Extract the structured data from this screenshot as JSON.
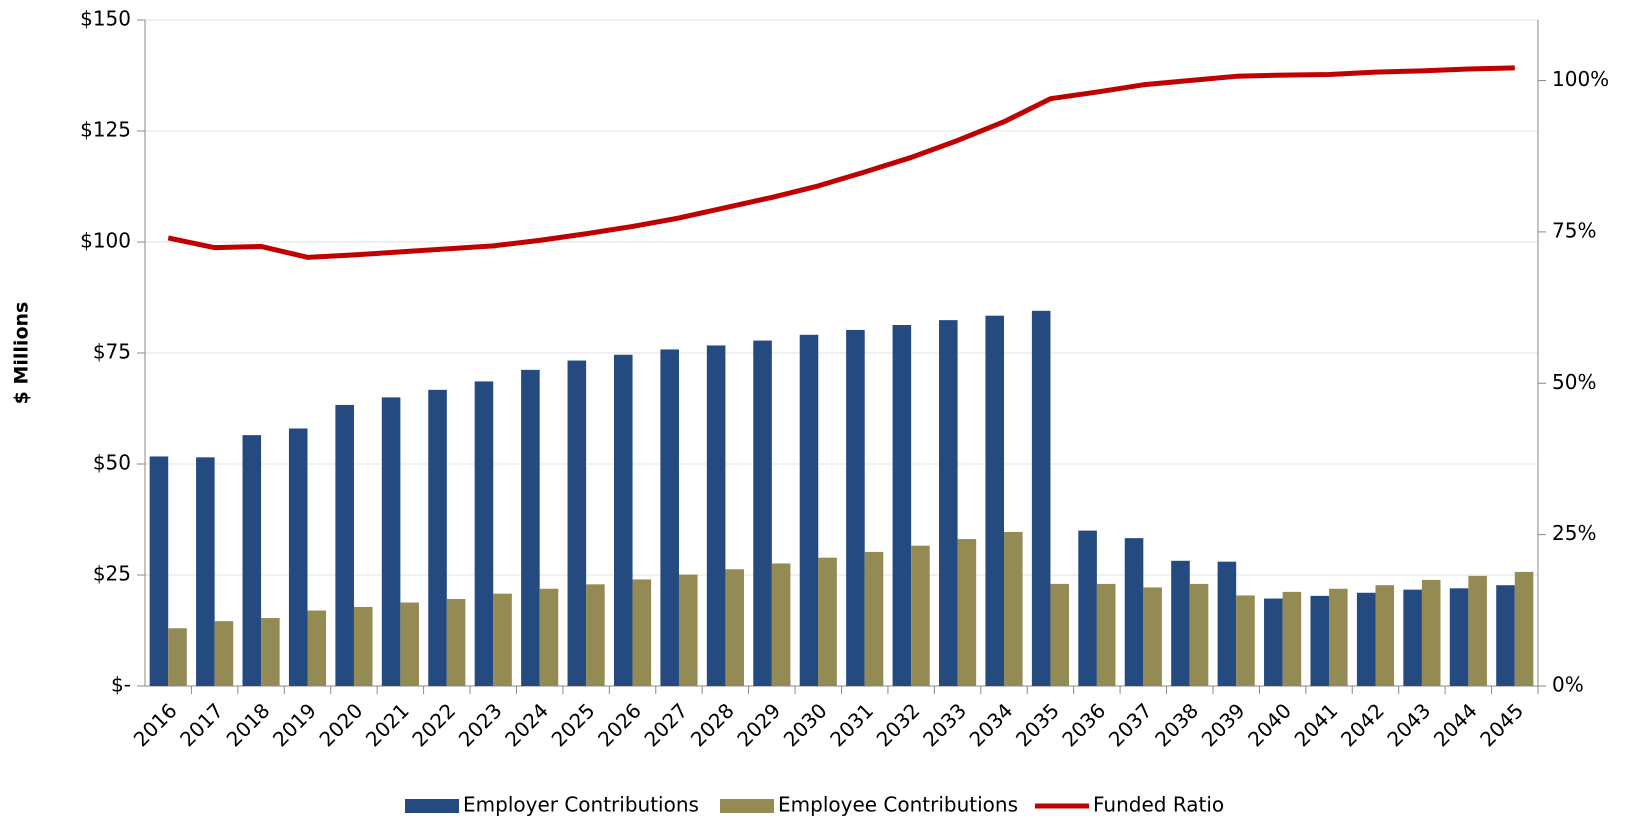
{
  "chart_data": {
    "type": "bar",
    "y_label": "$ Millions",
    "categories": [
      "2016",
      "2017",
      "2018",
      "2019",
      "2020",
      "2021",
      "2022",
      "2023",
      "2024",
      "2025",
      "2026",
      "2027",
      "2028",
      "2029",
      "2030",
      "2031",
      "2032",
      "2033",
      "2034",
      "2035",
      "2036",
      "2037",
      "2038",
      "2039",
      "2040",
      "2041",
      "2042",
      "2043",
      "2044",
      "2045"
    ],
    "series": [
      {
        "name": "Employer Contributions",
        "color": "#244a80",
        "type": "bar",
        "values": [
          51.7,
          51.5,
          56.5,
          58,
          63.3,
          65,
          66.7,
          68.6,
          71.2,
          73.3,
          74.6,
          75.8,
          76.7,
          77.8,
          79.1,
          80.2,
          81.3,
          82.4,
          83.4,
          84.5,
          35,
          33.3,
          28.2,
          28,
          19.7,
          20.3,
          21,
          21.7,
          22,
          22.7
        ]
      },
      {
        "name": "Employee Contributions",
        "color": "#948a54",
        "type": "bar",
        "values": [
          13,
          14.6,
          15.3,
          17,
          17.8,
          18.8,
          19.6,
          20.8,
          21.9,
          22.9,
          24,
          25.1,
          26.3,
          27.6,
          28.9,
          30.2,
          31.6,
          33.1,
          34.7,
          23,
          23,
          22.2,
          23,
          20.4,
          21.2,
          21.9,
          22.7,
          23.9,
          24.8,
          25.7
        ]
      },
      {
        "name": "Funded Ratio",
        "color": "#c00000",
        "type": "line",
        "axis": "y2",
        "values": [
          74,
          72.4,
          72.6,
          70.8,
          71.2,
          71.7,
          72.2,
          72.7,
          73.6,
          74.7,
          75.9,
          77.3,
          79,
          80.7,
          82.6,
          84.9,
          87.3,
          90.1,
          93.2,
          97,
          98.1,
          99.3,
          100,
          100.7,
          100.9,
          101,
          101.4,
          101.6,
          101.9,
          102.1
        ]
      }
    ],
    "ylim": [
      0,
      150
    ],
    "yticks": [
      {
        "value": 0,
        "label": "$-"
      },
      {
        "value": 25,
        "label": "$25"
      },
      {
        "value": 50,
        "label": "$50"
      },
      {
        "value": 75,
        "label": "$75"
      },
      {
        "value": 100,
        "label": "$100"
      },
      {
        "value": 125,
        "label": "$125"
      },
      {
        "value": 150,
        "label": "$150"
      }
    ],
    "y2lim": [
      0,
      110
    ],
    "y2ticks": [
      {
        "value": 0,
        "label": "0%"
      },
      {
        "value": 25,
        "label": "25%"
      },
      {
        "value": 50,
        "label": "50%"
      },
      {
        "value": 75,
        "label": "75%"
      },
      {
        "value": 100,
        "label": "100%"
      }
    ],
    "grid": true,
    "legend": "bottom"
  }
}
